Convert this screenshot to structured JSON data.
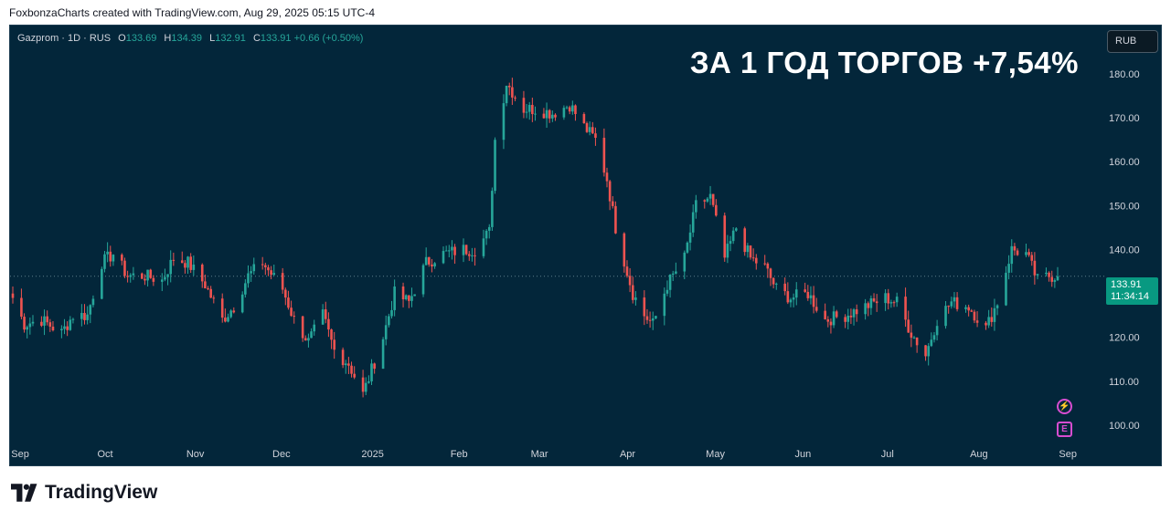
{
  "caption": "FoxbonzaCharts created with TradingView.com, Aug 29, 2025 05:15 UTC-4",
  "brand": {
    "name": "TradingView"
  },
  "legend": {
    "symbol": "Gazprom · 1D · RUS",
    "open_label": "O",
    "open": "133.69",
    "high_label": "H",
    "high": "134.39",
    "low_label": "L",
    "low": "132.91",
    "close_label": "C",
    "close": "133.91",
    "change": "+0.66 (+0.50%)"
  },
  "headline": "ЗА 1 ГОД ТОРГОВ +7,54%",
  "currency": "RUB",
  "last_price": {
    "price": "133.91",
    "countdown": "11:34:14"
  },
  "events": {
    "dividend_icon": "lightning-icon",
    "earnings_icon": "earnings-icon",
    "earnings_letter": "E"
  },
  "colors": {
    "background": "#03263a",
    "up": "#26a69a",
    "down": "#ef5350",
    "accent": "#089981",
    "event": "#d74dd0"
  },
  "chart_data": {
    "type": "candlestick",
    "x_axis": {
      "labels": [
        "Sep",
        "Oct",
        "Nov",
        "Dec",
        "2025",
        "Feb",
        "Mar",
        "Apr",
        "May",
        "Jun",
        "Jul",
        "Aug",
        "Sep"
      ]
    },
    "y_axis": {
      "ticks": [
        100,
        110,
        120,
        130,
        140,
        150,
        160,
        170,
        180
      ],
      "tick_labels": [
        "100.00",
        "110.00",
        "120.00",
        "130.00",
        "140.00",
        "150.00",
        "160.00",
        "170.00",
        "180.00"
      ],
      "range": [
        95,
        191
      ]
    },
    "last_price": 133.91,
    "series": [
      {
        "path": [
          [
            "2024-08-30",
            129
          ],
          [
            "2024-09-03",
            123
          ],
          [
            "2024-09-09",
            124
          ],
          [
            "2024-09-16",
            121
          ],
          [
            "2024-09-20",
            125
          ],
          [
            "2024-09-25",
            125
          ],
          [
            "2024-09-30",
            137
          ],
          [
            "2024-10-04",
            139
          ],
          [
            "2024-10-09",
            134
          ],
          [
            "2024-10-15",
            134
          ],
          [
            "2024-10-21",
            133
          ],
          [
            "2024-10-25",
            138
          ],
          [
            "2024-10-30",
            137
          ],
          [
            "2024-11-05",
            132
          ],
          [
            "2024-11-11",
            124
          ],
          [
            "2024-11-15",
            127
          ],
          [
            "2024-11-20",
            134
          ],
          [
            "2024-11-25",
            137
          ],
          [
            "2024-12-02",
            131
          ],
          [
            "2024-12-06",
            124
          ],
          [
            "2024-12-11",
            119
          ],
          [
            "2024-12-16",
            125
          ],
          [
            "2024-12-20",
            117
          ],
          [
            "2024-12-25",
            114
          ],
          [
            "2024-12-30",
            107
          ],
          [
            "2025-01-06",
            120
          ],
          [
            "2025-01-10",
            130
          ],
          [
            "2025-01-15",
            128
          ],
          [
            "2025-01-21",
            137
          ],
          [
            "2025-01-27",
            139
          ],
          [
            "2025-02-03",
            140
          ],
          [
            "2025-02-07",
            140
          ],
          [
            "2025-02-12",
            144
          ],
          [
            "2025-02-14",
            165
          ],
          [
            "2025-02-18",
            178
          ],
          [
            "2025-02-24",
            172
          ],
          [
            "2025-02-28",
            172
          ],
          [
            "2025-03-06",
            171
          ],
          [
            "2025-03-12",
            173
          ],
          [
            "2025-03-17",
            168
          ],
          [
            "2025-03-21",
            165
          ],
          [
            "2025-03-25",
            156
          ],
          [
            "2025-03-28",
            145
          ],
          [
            "2025-04-03",
            130
          ],
          [
            "2025-04-07",
            125
          ],
          [
            "2025-04-10",
            123
          ],
          [
            "2025-04-15",
            132
          ],
          [
            "2025-04-21",
            138
          ],
          [
            "2025-04-25",
            150
          ],
          [
            "2025-04-30",
            152
          ],
          [
            "2025-05-05",
            138
          ],
          [
            "2025-05-09",
            145
          ],
          [
            "2025-05-14",
            138
          ],
          [
            "2025-05-19",
            136
          ],
          [
            "2025-05-23",
            131
          ],
          [
            "2025-05-28",
            129
          ],
          [
            "2025-06-03",
            130
          ],
          [
            "2025-06-09",
            124
          ],
          [
            "2025-06-16",
            125
          ],
          [
            "2025-06-23",
            127
          ],
          [
            "2025-06-30",
            129
          ],
          [
            "2025-07-04",
            128
          ],
          [
            "2025-07-09",
            121
          ],
          [
            "2025-07-14",
            116
          ],
          [
            "2025-07-18",
            124
          ],
          [
            "2025-07-23",
            128
          ],
          [
            "2025-07-29",
            127
          ],
          [
            "2025-08-04",
            122
          ],
          [
            "2025-08-08",
            128
          ],
          [
            "2025-08-13",
            140
          ],
          [
            "2025-08-18",
            139
          ],
          [
            "2025-08-22",
            133
          ],
          [
            "2025-08-26",
            134
          ],
          [
            "2025-08-29",
            133.91
          ]
        ]
      }
    ]
  }
}
